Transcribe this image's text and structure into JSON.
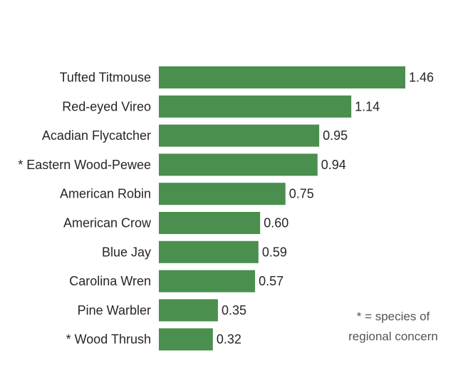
{
  "chart_data": {
    "type": "bar",
    "orientation": "horizontal",
    "categories": [
      "Tufted Titmouse",
      "Red-eyed Vireo",
      "Acadian Flycatcher",
      "* Eastern Wood-Pewee",
      "American Robin",
      "American Crow",
      "Blue Jay",
      "Carolina Wren",
      "Pine Warbler",
      "* Wood Thrush"
    ],
    "values": [
      1.46,
      1.14,
      0.95,
      0.94,
      0.75,
      0.6,
      0.59,
      0.57,
      0.35,
      0.32
    ],
    "value_labels": [
      "1.46",
      "1.14",
      "0.95",
      "0.94",
      "0.75",
      "0.60",
      "0.59",
      "0.57",
      "0.35",
      "0.32"
    ],
    "xlim": [
      0,
      1.46
    ],
    "grid": false,
    "colors": {
      "bar": "#4a8f4e",
      "text": "#262626",
      "note": "#555555"
    }
  },
  "annotation": {
    "line1": "* = species of",
    "line2": "regional concern"
  }
}
